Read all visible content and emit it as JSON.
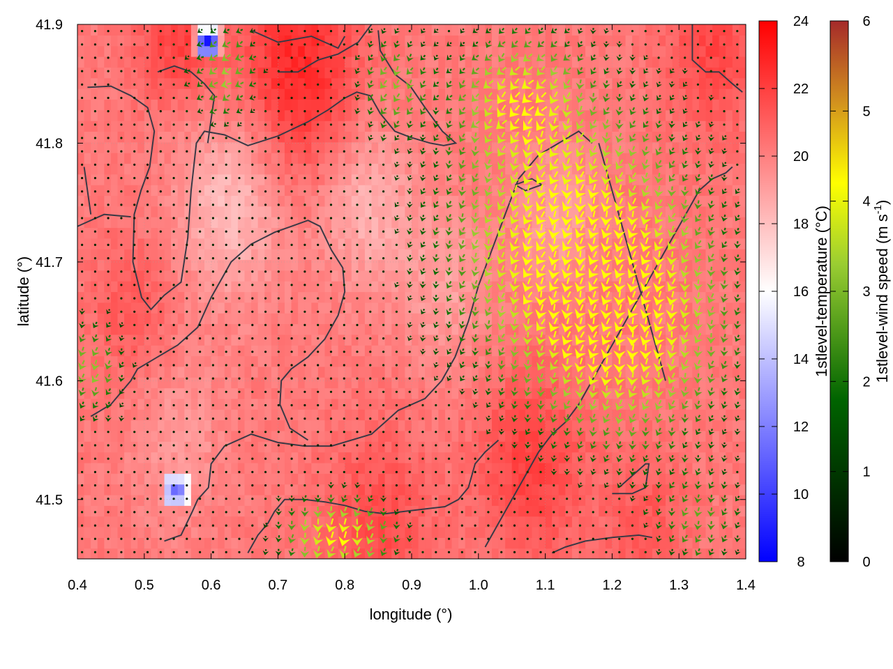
{
  "chart_data": {
    "type": "heatmap",
    "title": "",
    "xlabel": "longitude (°)",
    "ylabel": "latitude (°)",
    "xlim": [
      0.4,
      1.4
    ],
    "ylim": [
      41.45,
      41.9
    ],
    "x_ticks": [
      {
        "value": 0.4,
        "label": "0.4"
      },
      {
        "value": 0.5,
        "label": "0.5"
      },
      {
        "value": 0.6,
        "label": "0.6"
      },
      {
        "value": 0.7,
        "label": "0.7"
      },
      {
        "value": 0.8,
        "label": "0.8"
      },
      {
        "value": 0.9,
        "label": "0.9"
      },
      {
        "value": 1.0,
        "label": "1.0"
      },
      {
        "value": 1.1,
        "label": "1.1"
      },
      {
        "value": 1.2,
        "label": "1.2"
      },
      {
        "value": 1.3,
        "label": "1.3"
      },
      {
        "value": 1.4,
        "label": "1.4"
      }
    ],
    "y_ticks": [
      {
        "value": 41.5,
        "label": "41.5"
      },
      {
        "value": 41.6,
        "label": "41.6"
      },
      {
        "value": 41.7,
        "label": "41.7"
      },
      {
        "value": 41.8,
        "label": "41.8"
      },
      {
        "value": 41.9,
        "label": "41.9"
      }
    ],
    "grid": true,
    "temperature_colorbar": {
      "label": "1stlevel-temperature (°C)",
      "range": [
        8,
        24
      ],
      "ticks": [
        {
          "value": 8,
          "label": "8"
        },
        {
          "value": 10,
          "label": "10"
        },
        {
          "value": 12,
          "label": "12"
        },
        {
          "value": 14,
          "label": "14"
        },
        {
          "value": 16,
          "label": "16"
        },
        {
          "value": 18,
          "label": "18"
        },
        {
          "value": 20,
          "label": "20"
        },
        {
          "value": 22,
          "label": "22"
        },
        {
          "value": 24,
          "label": "24"
        }
      ],
      "colors": [
        "#0000ff",
        "#ffffff",
        "#ff0000"
      ]
    },
    "wind_colorbar": {
      "label_prefix": "1stlevel-wind speed (m s",
      "label_sup": "-1",
      "label_suffix": ")",
      "range": [
        0,
        6
      ],
      "ticks": [
        {
          "value": 0,
          "label": "0"
        },
        {
          "value": 1,
          "label": "1"
        },
        {
          "value": 2,
          "label": "2"
        },
        {
          "value": 3,
          "label": "3"
        },
        {
          "value": 4,
          "label": "4"
        },
        {
          "value": 5,
          "label": "5"
        },
        {
          "value": 6,
          "label": "6"
        }
      ],
      "colors": [
        "#000000",
        "#006400",
        "#9acd32",
        "#ffff00",
        "#d2911e",
        "#a52a2a"
      ]
    },
    "temperature_field": {
      "base": 20.2,
      "hot_spots": [
        {
          "lon": 0.73,
          "lat": 41.86,
          "temp": 22.8,
          "r": 0.09
        },
        {
          "lon": 0.55,
          "lat": 41.89,
          "temp": 22.0,
          "r": 0.06
        },
        {
          "lon": 1.35,
          "lat": 41.88,
          "temp": 21.8,
          "r": 0.07
        },
        {
          "lon": 1.08,
          "lat": 41.53,
          "temp": 22.0,
          "r": 0.08
        },
        {
          "lon": 0.85,
          "lat": 41.48,
          "temp": 21.6,
          "r": 0.08
        },
        {
          "lon": 1.25,
          "lat": 41.48,
          "temp": 21.3,
          "r": 0.06
        },
        {
          "lon": 0.48,
          "lat": 41.66,
          "temp": 21.2,
          "r": 0.06
        }
      ],
      "cool_spots": [
        {
          "lon": 0.63,
          "lat": 41.75,
          "temp": 18.0,
          "r": 0.08
        },
        {
          "lon": 0.83,
          "lat": 41.75,
          "temp": 18.4,
          "r": 0.07
        },
        {
          "lon": 0.95,
          "lat": 41.68,
          "temp": 19.0,
          "r": 0.07
        },
        {
          "lon": 1.12,
          "lat": 41.74,
          "temp": 19.0,
          "r": 0.06
        },
        {
          "lon": 0.55,
          "lat": 41.55,
          "temp": 19.2,
          "r": 0.07
        }
      ],
      "cold_cells": [
        {
          "lon": 0.595,
          "lat": 41.885,
          "temp": 8.5
        },
        {
          "lon": 0.548,
          "lat": 41.508,
          "temp": 11.2
        }
      ]
    },
    "wind_field": {
      "zones": [
        {
          "lon": 1.14,
          "lat": 41.72,
          "speed": 3.4,
          "dir_deg": 200,
          "rlon": 0.18,
          "rlat": 0.11
        },
        {
          "lon": 1.23,
          "lat": 41.63,
          "speed": 2.3,
          "dir_deg": 195,
          "rlon": 0.15,
          "rlat": 0.09
        },
        {
          "lon": 1.06,
          "lat": 41.84,
          "speed": 2.4,
          "dir_deg": 220,
          "rlon": 0.09,
          "rlat": 0.05
        },
        {
          "lon": 0.79,
          "lat": 41.47,
          "speed": 3.2,
          "dir_deg": 190,
          "rlon": 0.08,
          "rlat": 0.03
        },
        {
          "lon": 0.42,
          "lat": 41.61,
          "speed": 1.9,
          "dir_deg": 200,
          "rlon": 0.05,
          "rlat": 0.04
        },
        {
          "lon": 0.62,
          "lat": 41.86,
          "speed": 2.0,
          "dir_deg": 240,
          "rlon": 0.05,
          "rlat": 0.04
        },
        {
          "lon": 0.87,
          "lat": 41.85,
          "speed": 1.8,
          "dir_deg": 210,
          "rlon": 0.05,
          "rlat": 0.04
        },
        {
          "lon": 1.33,
          "lat": 41.48,
          "speed": 1.4,
          "dir_deg": 200,
          "rlon": 0.07,
          "rlat": 0.04
        }
      ],
      "background_speed": 0.3
    },
    "contour_lines": [
      [
        [
          0.415,
          41.847
        ],
        [
          0.45,
          41.848
        ],
        [
          0.48,
          41.84
        ],
        [
          0.505,
          41.83
        ],
        [
          0.515,
          41.81
        ],
        [
          0.508,
          41.78
        ],
        [
          0.495,
          41.76
        ],
        [
          0.485,
          41.74
        ],
        [
          0.483,
          41.7
        ],
        [
          0.496,
          41.67
        ],
        [
          0.51,
          41.66
        ],
        [
          0.53,
          41.672
        ],
        [
          0.555,
          41.683
        ],
        [
          0.565,
          41.72
        ],
        [
          0.57,
          41.76
        ],
        [
          0.578,
          41.8
        ],
        [
          0.59,
          41.81
        ],
        [
          0.62,
          41.807
        ],
        [
          0.655,
          41.798
        ],
        [
          0.7,
          41.806
        ],
        [
          0.745,
          41.818
        ],
        [
          0.775,
          41.828
        ],
        [
          0.8,
          41.838
        ],
        [
          0.818,
          41.843
        ],
        [
          0.838,
          41.84
        ],
        [
          0.853,
          41.825
        ],
        [
          0.875,
          41.81
        ],
        [
          0.898,
          41.805
        ],
        [
          0.928,
          41.8
        ],
        [
          0.948,
          41.798
        ],
        [
          0.966,
          41.8
        ],
        [
          0.946,
          41.81
        ],
        [
          0.92,
          41.83
        ],
        [
          0.898,
          41.848
        ],
        [
          0.875,
          41.858
        ],
        [
          0.853,
          41.878
        ],
        [
          0.85,
          41.895
        ]
      ],
      [
        [
          0.335,
          41.7
        ],
        [
          0.356,
          41.71
        ],
        [
          0.378,
          41.72
        ],
        [
          0.4,
          41.73
        ],
        [
          0.44,
          41.74
        ],
        [
          0.48,
          41.738
        ]
      ],
      [
        [
          0.42,
          41.57
        ],
        [
          0.45,
          41.58
        ],
        [
          0.48,
          41.6
        ],
        [
          0.49,
          41.61
        ],
        [
          0.52,
          41.62
        ],
        [
          0.55,
          41.63
        ],
        [
          0.58,
          41.645
        ],
        [
          0.6,
          41.67
        ],
        [
          0.63,
          41.7
        ],
        [
          0.66,
          41.715
        ],
        [
          0.695,
          41.725
        ],
        [
          0.72,
          41.73
        ],
        [
          0.745,
          41.735
        ],
        [
          0.763,
          41.73
        ],
        [
          0.78,
          41.71
        ],
        [
          0.797,
          41.695
        ],
        [
          0.8,
          41.675
        ],
        [
          0.79,
          41.655
        ],
        [
          0.77,
          41.635
        ],
        [
          0.745,
          41.62
        ],
        [
          0.72,
          41.61
        ],
        [
          0.705,
          41.6
        ],
        [
          0.703,
          41.58
        ],
        [
          0.718,
          41.56
        ],
        [
          0.745,
          41.55
        ]
      ],
      [
        [
          0.53,
          41.465
        ],
        [
          0.555,
          41.47
        ],
        [
          0.572,
          41.49
        ],
        [
          0.58,
          41.5
        ],
        [
          0.596,
          41.51
        ],
        [
          0.6,
          41.53
        ],
        [
          0.62,
          41.545
        ],
        [
          0.66,
          41.555
        ],
        [
          0.7,
          41.548
        ],
        [
          0.74,
          41.545
        ],
        [
          0.78,
          41.545
        ],
        [
          0.81,
          41.55
        ],
        [
          0.84,
          41.555
        ],
        [
          0.86,
          41.565
        ],
        [
          0.88,
          41.575
        ],
        [
          0.9,
          41.58
        ],
        [
          0.92,
          41.585
        ],
        [
          0.945,
          41.6
        ],
        [
          0.965,
          41.62
        ],
        [
          0.985,
          41.65
        ],
        [
          1.0,
          41.68
        ],
        [
          1.02,
          41.71
        ],
        [
          1.04,
          41.74
        ],
        [
          1.06,
          41.77
        ],
        [
          1.09,
          41.79
        ],
        [
          1.12,
          41.8
        ],
        [
          1.15,
          41.81
        ],
        [
          1.17,
          41.8
        ]
      ],
      [
        [
          0.655,
          41.455
        ],
        [
          0.67,
          41.47
        ],
        [
          0.685,
          41.48
        ],
        [
          0.695,
          41.49
        ],
        [
          0.71,
          41.5
        ],
        [
          0.74,
          41.5
        ],
        [
          0.77,
          41.498
        ],
        [
          0.8,
          41.495
        ],
        [
          0.83,
          41.49
        ],
        [
          0.86,
          41.488
        ],
        [
          0.89,
          41.49
        ],
        [
          0.92,
          41.492
        ],
        [
          0.95,
          41.494
        ],
        [
          0.97,
          41.5
        ],
        [
          0.985,
          41.51
        ],
        [
          0.995,
          41.53
        ],
        [
          1.01,
          41.54
        ],
        [
          1.03,
          41.55
        ]
      ],
      [
        [
          1.01,
          41.46
        ],
        [
          1.03,
          41.48
        ],
        [
          1.05,
          41.5
        ],
        [
          1.07,
          41.52
        ],
        [
          1.09,
          41.54
        ],
        [
          1.11,
          41.555
        ],
        [
          1.13,
          41.565
        ],
        [
          1.15,
          41.58
        ],
        [
          1.17,
          41.6
        ],
        [
          1.19,
          41.62
        ],
        [
          1.21,
          41.64
        ],
        [
          1.23,
          41.66
        ],
        [
          1.25,
          41.68
        ],
        [
          1.27,
          41.7
        ],
        [
          1.29,
          41.72
        ],
        [
          1.31,
          41.74
        ],
        [
          1.33,
          41.76
        ],
        [
          1.35,
          41.77
        ],
        [
          1.37,
          41.775
        ],
        [
          1.38,
          41.78
        ]
      ],
      [
        [
          1.11,
          41.455
        ],
        [
          1.13,
          41.46
        ],
        [
          1.16,
          41.465
        ],
        [
          1.2,
          41.468
        ],
        [
          1.24,
          41.47
        ],
        [
          1.26,
          41.468
        ]
      ],
      [
        [
          1.2,
          41.505
        ],
        [
          1.23,
          41.505
        ],
        [
          1.25,
          41.51
        ],
        [
          1.255,
          41.53
        ],
        [
          1.25,
          41.53
        ],
        [
          1.23,
          41.52
        ],
        [
          1.21,
          41.51
        ]
      ],
      [
        [
          0.66,
          41.895
        ],
        [
          0.7,
          41.885
        ],
        [
          0.75,
          41.89
        ],
        [
          0.79,
          41.88
        ],
        [
          0.8,
          41.89
        ]
      ],
      [
        [
          0.7,
          41.86
        ],
        [
          0.73,
          41.86
        ],
        [
          0.76,
          41.87
        ],
        [
          0.79,
          41.875
        ],
        [
          0.82,
          41.885
        ],
        [
          0.84,
          41.9
        ]
      ],
      [
        [
          1.32,
          41.9
        ],
        [
          1.32,
          41.87
        ],
        [
          1.34,
          41.86
        ],
        [
          1.36,
          41.86
        ],
        [
          1.38,
          41.85
        ],
        [
          1.395,
          41.843
        ]
      ],
      [
        [
          0.52,
          41.86
        ],
        [
          0.545,
          41.865
        ],
        [
          0.57,
          41.86
        ],
        [
          0.59,
          41.85
        ],
        [
          0.605,
          41.84
        ],
        [
          0.6,
          41.82
        ],
        [
          0.595,
          41.8
        ]
      ],
      [
        [
          1.055,
          41.765
        ],
        [
          1.08,
          41.77
        ],
        [
          1.095,
          41.765
        ],
        [
          1.07,
          41.76
        ],
        [
          1.055,
          41.765
        ]
      ],
      [
        [
          1.18,
          41.8
        ],
        [
          1.19,
          41.78
        ],
        [
          1.2,
          41.76
        ],
        [
          1.21,
          41.74
        ],
        [
          1.22,
          41.72
        ],
        [
          1.23,
          41.7
        ],
        [
          1.24,
          41.68
        ],
        [
          1.25,
          41.66
        ],
        [
          1.26,
          41.64
        ],
        [
          1.27,
          41.62
        ],
        [
          1.28,
          41.6
        ]
      ],
      [
        [
          0.41,
          41.78
        ],
        [
          0.415,
          41.76
        ],
        [
          0.42,
          41.74
        ]
      ]
    ]
  }
}
